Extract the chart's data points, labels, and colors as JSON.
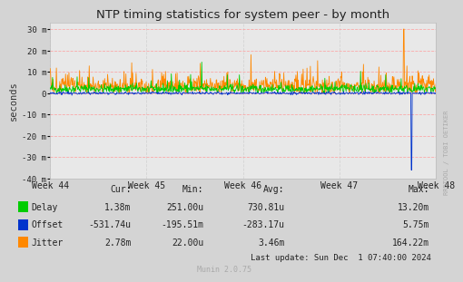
{
  "title": "NTP timing statistics for system peer - by month",
  "ylabel": "seconds",
  "ylim_min": -0.04,
  "ylim_max": 0.033,
  "yticks": [
    -0.04,
    -0.03,
    -0.02,
    -0.01,
    0.0,
    0.01,
    0.02,
    0.03
  ],
  "ytick_labels": [
    "-40 m",
    "-30 m",
    "-20 m",
    "-10 m",
    "0",
    "10 m",
    "20 m",
    "30 m"
  ],
  "xtick_labels": [
    "Week 44",
    "Week 45",
    "Week 46",
    "Week 47",
    "Week 48"
  ],
  "bg_color": "#d4d4d4",
  "plot_bg_color": "#e8e8e8",
  "grid_color_h": "#ff9999",
  "grid_color_v": "#cccccc",
  "delay_color": "#00cc00",
  "offset_color": "#0033cc",
  "jitter_color": "#ff8800",
  "watermark": "RRDTOOL / TOBI OETIKER",
  "munin_text": "Munin 2.0.75",
  "legend_labels": [
    "Delay",
    "Offset",
    "Jitter"
  ],
  "legend_colors": [
    "#00cc00",
    "#0033cc",
    "#ff8800"
  ],
  "stat_headers": [
    "Cur:",
    "Min:",
    "Avg:",
    "Max:"
  ],
  "stat_cur": [
    "1.38m",
    "-531.74u",
    "2.78m"
  ],
  "stat_min": [
    "251.00u",
    "-195.51m",
    "22.00u"
  ],
  "stat_avg": [
    "730.81u",
    "-283.17u",
    "3.46m"
  ],
  "stat_max": [
    "13.20m",
    "5.75m",
    "164.22m"
  ],
  "last_update": "Last update: Sun Dec  1 07:40:00 2024",
  "n_points": 800,
  "seed": 42
}
